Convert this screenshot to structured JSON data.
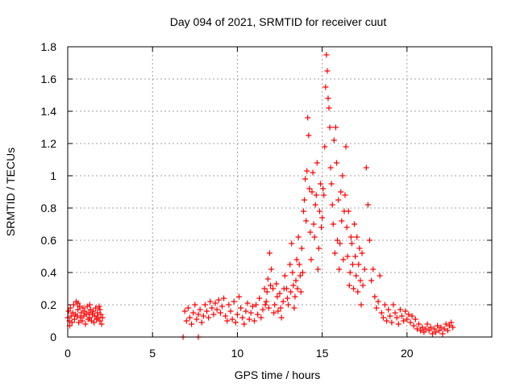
{
  "chart_data": {
    "type": "scatter",
    "title": "Day 094 of 2021, SRMTID for receiver cuut",
    "xlabel": "GPS time / hours",
    "ylabel": "SRMTID / TECUs",
    "xlim": [
      0,
      25
    ],
    "ylim": [
      0,
      1.8
    ],
    "xticks": [
      0,
      5,
      10,
      15,
      20
    ],
    "xtick_labels": [
      "0",
      "5",
      "10",
      "15",
      "20"
    ],
    "yticks": [
      0,
      0.2,
      0.4,
      0.6,
      0.8,
      1,
      1.2,
      1.4,
      1.6,
      1.8
    ],
    "ytick_labels": [
      "0",
      "0.2",
      "0.4",
      "0.6",
      "0.8",
      "1",
      "1.2",
      "1.4",
      "1.6",
      "1.8"
    ],
    "grid": true,
    "marker": "+",
    "series_color": "#ff0000",
    "series": [
      {
        "name": "SRMTID",
        "points": [
          [
            0.0,
            0.12
          ],
          [
            0.05,
            0.16
          ],
          [
            0.1,
            0.1
          ],
          [
            0.15,
            0.18
          ],
          [
            0.2,
            0.13
          ],
          [
            0.25,
            0.09
          ],
          [
            0.3,
            0.15
          ],
          [
            0.35,
            0.2
          ],
          [
            0.4,
            0.11
          ],
          [
            0.45,
            0.14
          ],
          [
            0.5,
            0.22
          ],
          [
            0.55,
            0.13
          ],
          [
            0.6,
            0.17
          ],
          [
            0.65,
            0.09
          ],
          [
            0.7,
            0.19
          ],
          [
            0.75,
            0.12
          ],
          [
            0.8,
            0.15
          ],
          [
            0.85,
            0.1
          ],
          [
            0.9,
            0.18
          ],
          [
            0.95,
            0.13
          ],
          [
            1.0,
            0.16
          ],
          [
            1.05,
            0.08
          ],
          [
            1.1,
            0.14
          ],
          [
            1.15,
            0.19
          ],
          [
            1.2,
            0.11
          ],
          [
            1.25,
            0.15
          ],
          [
            1.3,
            0.12
          ],
          [
            1.35,
            0.17
          ],
          [
            1.4,
            0.1
          ],
          [
            1.45,
            0.14
          ],
          [
            1.5,
            0.16
          ],
          [
            1.55,
            0.09
          ],
          [
            1.6,
            0.13
          ],
          [
            1.65,
            0.18
          ],
          [
            1.7,
            0.11
          ],
          [
            1.75,
            0.15
          ],
          [
            1.8,
            0.12
          ],
          [
            1.85,
            0.19
          ],
          [
            1.9,
            0.1
          ],
          [
            1.95,
            0.14
          ],
          [
            2.0,
            0.08
          ],
          [
            2.05,
            0.12
          ],
          [
            0.12,
            0.07
          ],
          [
            0.6,
            0.21
          ],
          [
            1.3,
            0.2
          ],
          [
            1.9,
            0.17
          ],
          [
            6.8,
            0.0
          ],
          [
            7.7,
            0.0
          ],
          [
            6.9,
            0.16
          ],
          [
            7.0,
            0.1
          ],
          [
            7.1,
            0.18
          ],
          [
            7.2,
            0.12
          ],
          [
            7.3,
            0.08
          ],
          [
            7.4,
            0.15
          ],
          [
            7.5,
            0.2
          ],
          [
            7.6,
            0.11
          ],
          [
            7.7,
            0.14
          ],
          [
            7.8,
            0.17
          ],
          [
            7.9,
            0.09
          ],
          [
            8.0,
            0.13
          ],
          [
            8.1,
            0.2
          ],
          [
            8.2,
            0.16
          ],
          [
            8.3,
            0.12
          ],
          [
            8.4,
            0.22
          ],
          [
            8.5,
            0.18
          ],
          [
            8.6,
            0.14
          ],
          [
            8.7,
            0.21
          ],
          [
            8.8,
            0.17
          ],
          [
            8.9,
            0.23
          ],
          [
            9.0,
            0.15
          ],
          [
            9.1,
            0.19
          ],
          [
            9.2,
            0.24
          ],
          [
            9.3,
            0.13
          ],
          [
            9.4,
            0.1
          ],
          [
            9.5,
            0.2
          ],
          [
            9.6,
            0.16
          ],
          [
            9.7,
            0.11
          ],
          [
            9.8,
            0.22
          ],
          [
            9.9,
            0.09
          ],
          [
            10.0,
            0.14
          ],
          [
            10.1,
            0.25
          ],
          [
            10.2,
            0.18
          ],
          [
            10.3,
            0.12
          ],
          [
            10.4,
            0.08
          ],
          [
            10.5,
            0.16
          ],
          [
            10.6,
            0.21
          ],
          [
            10.7,
            0.11
          ],
          [
            10.8,
            0.15
          ],
          [
            10.9,
            0.19
          ],
          [
            11.0,
            0.1
          ],
          [
            11.1,
            0.2
          ],
          [
            11.2,
            0.14
          ],
          [
            11.3,
            0.24
          ],
          [
            11.4,
            0.12
          ],
          [
            11.5,
            0.17
          ],
          [
            11.6,
            0.3
          ],
          [
            11.7,
            0.22
          ],
          [
            11.8,
            0.36
          ],
          [
            11.9,
            0.52
          ],
          [
            12.0,
            0.42
          ],
          [
            12.1,
            0.3
          ],
          [
            12.2,
            0.2
          ],
          [
            12.3,
            0.33
          ],
          [
            12.4,
            0.16
          ],
          [
            12.5,
            0.27
          ],
          [
            12.6,
            0.12
          ],
          [
            12.7,
            0.22
          ],
          [
            12.8,
            0.38
          ],
          [
            12.9,
            0.3
          ],
          [
            13.0,
            0.2
          ],
          [
            13.1,
            0.45
          ],
          [
            13.2,
            0.58
          ],
          [
            13.3,
            0.32
          ],
          [
            13.4,
            0.25
          ],
          [
            13.5,
            0.48
          ],
          [
            13.6,
            0.62
          ],
          [
            13.7,
            0.38
          ],
          [
            13.8,
            0.55
          ],
          [
            13.9,
            0.78
          ],
          [
            14.0,
            0.98
          ],
          [
            14.1,
            1.03
          ],
          [
            14.15,
            1.36
          ],
          [
            14.2,
            1.25
          ],
          [
            14.3,
            0.65
          ],
          [
            14.4,
            0.9
          ],
          [
            14.5,
            0.7
          ],
          [
            14.6,
            0.82
          ],
          [
            14.7,
            1.08
          ],
          [
            14.8,
            0.55
          ],
          [
            14.9,
            0.95
          ],
          [
            15.0,
            0.74
          ],
          [
            15.1,
            0.88
          ],
          [
            15.15,
            1.18
          ],
          [
            15.2,
            1.55
          ],
          [
            15.25,
            1.75
          ],
          [
            15.3,
            1.65
          ],
          [
            15.35,
            1.48
          ],
          [
            15.4,
            1.42
          ],
          [
            15.45,
            1.3
          ],
          [
            15.5,
            1.05
          ],
          [
            15.6,
            0.82
          ],
          [
            15.7,
            1.22
          ],
          [
            15.8,
            1.3
          ],
          [
            15.9,
            0.6
          ],
          [
            16.0,
            0.42
          ],
          [
            16.1,
            0.9
          ],
          [
            16.2,
            1.0
          ],
          [
            16.3,
            0.78
          ],
          [
            16.4,
            1.18
          ],
          [
            16.5,
            0.5
          ],
          [
            16.6,
            0.32
          ],
          [
            16.7,
            0.62
          ],
          [
            16.8,
            0.45
          ],
          [
            16.9,
            0.7
          ],
          [
            17.0,
            0.38
          ],
          [
            17.1,
            0.28
          ],
          [
            17.2,
            0.55
          ],
          [
            17.3,
            0.2
          ],
          [
            17.4,
            0.32
          ],
          [
            17.5,
            0.42
          ],
          [
            17.6,
            1.05
          ],
          [
            17.7,
            0.82
          ],
          [
            17.8,
            0.6
          ],
          [
            17.9,
            0.35
          ],
          [
            18.0,
            0.42
          ],
          [
            18.1,
            0.25
          ],
          [
            18.2,
            0.18
          ],
          [
            18.3,
            0.22
          ],
          [
            18.4,
            0.38
          ],
          [
            18.5,
            0.15
          ],
          [
            18.6,
            0.12
          ],
          [
            18.7,
            0.2
          ],
          [
            18.8,
            0.1
          ],
          [
            18.9,
            0.17
          ],
          [
            19.0,
            0.13
          ],
          [
            19.1,
            0.09
          ],
          [
            19.2,
            0.2
          ],
          [
            19.3,
            0.15
          ],
          [
            19.4,
            0.12
          ],
          [
            19.5,
            0.08
          ],
          [
            19.6,
            0.17
          ],
          [
            19.7,
            0.13
          ],
          [
            19.8,
            0.1
          ],
          [
            19.9,
            0.16
          ],
          [
            20.0,
            0.11
          ],
          [
            20.1,
            0.14
          ],
          [
            20.2,
            0.09
          ],
          [
            20.3,
            0.13
          ],
          [
            20.4,
            0.07
          ],
          [
            20.5,
            0.11
          ],
          [
            20.6,
            0.05
          ],
          [
            20.7,
            0.08
          ],
          [
            20.8,
            0.04
          ],
          [
            20.9,
            0.06
          ],
          [
            21.0,
            0.03
          ],
          [
            21.1,
            0.05
          ],
          [
            21.2,
            0.08
          ],
          [
            21.3,
            0.04
          ],
          [
            21.4,
            0.06
          ],
          [
            21.5,
            0.02
          ],
          [
            21.6,
            0.05
          ],
          [
            21.7,
            0.03
          ],
          [
            21.8,
            0.07
          ],
          [
            21.9,
            0.04
          ],
          [
            22.0,
            0.06
          ],
          [
            22.1,
            0.02
          ],
          [
            22.2,
            0.05
          ],
          [
            22.3,
            0.08
          ],
          [
            22.4,
            0.04
          ],
          [
            22.5,
            0.07
          ],
          [
            22.6,
            0.09
          ],
          [
            22.7,
            0.06
          ],
          [
            13.95,
            0.85
          ],
          [
            14.05,
            0.72
          ],
          [
            14.25,
            0.92
          ],
          [
            14.35,
            0.48
          ],
          [
            14.45,
            1.02
          ],
          [
            14.55,
            0.62
          ],
          [
            14.65,
            0.88
          ],
          [
            14.75,
            0.42
          ],
          [
            14.85,
            0.78
          ],
          [
            14.95,
            0.68
          ],
          [
            15.05,
            0.92
          ],
          [
            15.55,
            0.95
          ],
          [
            15.65,
            0.7
          ],
          [
            15.75,
            0.52
          ],
          [
            15.85,
            1.08
          ],
          [
            15.95,
            0.85
          ],
          [
            16.05,
            0.58
          ],
          [
            16.15,
            0.72
          ],
          [
            16.25,
            0.48
          ],
          [
            16.35,
            0.88
          ],
          [
            16.45,
            0.68
          ],
          [
            16.55,
            0.78
          ],
          [
            16.65,
            0.4
          ],
          [
            16.75,
            0.58
          ],
          [
            16.85,
            0.3
          ],
          [
            16.95,
            0.5
          ],
          [
            17.05,
            0.62
          ],
          [
            17.15,
            0.45
          ],
          [
            17.25,
            0.35
          ],
          [
            17.35,
            0.52
          ],
          [
            13.15,
            0.28
          ],
          [
            13.25,
            0.4
          ],
          [
            13.35,
            0.18
          ],
          [
            13.45,
            0.35
          ],
          [
            13.55,
            0.3
          ],
          [
            13.65,
            0.45
          ],
          [
            13.75,
            0.28
          ],
          [
            13.85,
            0.4
          ],
          [
            12.15,
            0.15
          ],
          [
            12.35,
            0.25
          ],
          [
            12.55,
            0.18
          ],
          [
            12.75,
            0.3
          ],
          [
            12.95,
            0.24
          ],
          [
            11.65,
            0.2
          ],
          [
            11.75,
            0.28
          ],
          [
            11.85,
            0.18
          ],
          [
            11.95,
            0.32
          ]
        ]
      }
    ]
  }
}
